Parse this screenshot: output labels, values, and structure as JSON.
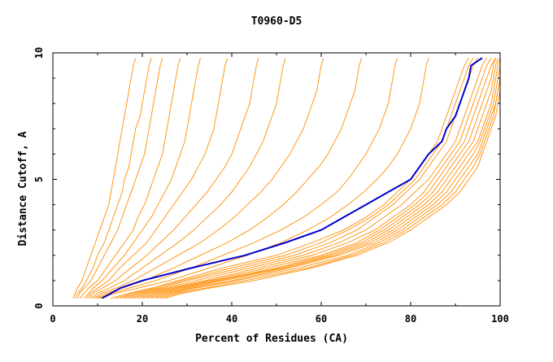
{
  "colors": {
    "background": "#ffffff",
    "axis": "#000000",
    "series_default": "#ff8c00",
    "series_highlight": "#0000cc"
  },
  "chart_data": {
    "type": "line",
    "title": "T0960-D5",
    "xlabel": "Percent of Residues (CA)",
    "ylabel": "Distance Cutoff, A",
    "xlim": [
      0,
      100
    ],
    "ylim": [
      0,
      10
    ],
    "xticks": [
      "0",
      "20",
      "40",
      "60",
      "80",
      "100"
    ],
    "yticks": [
      "0",
      "5",
      "10"
    ],
    "grid": false,
    "legend": "none",
    "y": [
      0.3,
      0.5,
      0.7,
      1.0,
      1.5,
      2.0,
      2.5,
      3.0,
      3.5,
      4.0,
      4.5,
      5.0,
      5.5,
      6.0,
      6.5,
      7.0,
      7.5,
      8.0,
      8.5,
      9.0,
      9.5,
      9.8
    ],
    "highlight_series_index": 0,
    "series": [
      {
        "x": [
          11,
          13,
          15,
          20,
          31,
          43,
          52,
          60,
          65,
          70,
          75,
          80,
          82,
          84,
          87,
          88,
          90,
          91,
          92,
          93,
          93.5,
          96
        ]
      },
      {
        "x": [
          4.5,
          5.0,
          5.5,
          6.5,
          7.5,
          8.5,
          9.5,
          10.5,
          11.5,
          12.5,
          13.0,
          13.5,
          14.0,
          14.5,
          15.0,
          15.5,
          16.0,
          16.5,
          17.0,
          17.5,
          18.0,
          18.5
        ]
      },
      {
        "x": [
          5.0,
          5.5,
          6.5,
          7.5,
          9.0,
          10.0,
          11.5,
          12.5,
          13.5,
          14.5,
          15.5,
          16.0,
          17.0,
          17.5,
          18.0,
          18.5,
          19.5,
          20.0,
          20.5,
          21.0,
          21.5,
          22.0
        ]
      },
      {
        "x": [
          5.5,
          6.0,
          7.0,
          8.5,
          10.0,
          11.5,
          13.0,
          14.5,
          15.5,
          16.5,
          17.5,
          18.5,
          19.5,
          20.5,
          21.0,
          21.5,
          22.0,
          22.5,
          23.0,
          23.5,
          24.0,
          24.5
        ]
      },
      {
        "x": [
          6.0,
          7.0,
          8.0,
          10.0,
          12.0,
          14.0,
          16.0,
          18.0,
          19.0,
          20.5,
          21.5,
          22.5,
          23.5,
          24.5,
          25.0,
          25.5,
          26.0,
          26.5,
          27.0,
          27.5,
          28.0,
          28.5
        ]
      },
      {
        "x": [
          7.0,
          8.0,
          9.0,
          11.0,
          13.5,
          16.0,
          18.0,
          20.0,
          22.0,
          23.5,
          25.0,
          26.5,
          27.5,
          28.5,
          29.5,
          30.0,
          30.5,
          31.0,
          31.5,
          32.0,
          32.5,
          33.0
        ]
      },
      {
        "x": [
          7.5,
          8.5,
          10.0,
          12.5,
          15.0,
          18.0,
          21.0,
          23.0,
          25.0,
          27.0,
          29.0,
          31.0,
          32.5,
          34.0,
          35.0,
          36.0,
          36.5,
          37.0,
          37.5,
          38.0,
          38.5,
          39.0
        ]
      },
      {
        "x": [
          8.0,
          9.0,
          11.0,
          14.0,
          17.5,
          21.0,
          24.0,
          27.0,
          29.5,
          32.0,
          34.5,
          36.5,
          38.5,
          40.0,
          41.0,
          42.0,
          43.0,
          44.0,
          44.5,
          45.0,
          45.5,
          46.0
        ]
      },
      {
        "x": [
          8.5,
          10.0,
          12.5,
          16.0,
          20.0,
          24.0,
          28.0,
          31.5,
          34.5,
          37.5,
          40.0,
          42.0,
          44.0,
          45.5,
          47.0,
          48.0,
          49.0,
          50.0,
          50.5,
          51.0,
          51.5,
          52.0
        ]
      },
      {
        "x": [
          9.0,
          11.0,
          14.0,
          18.0,
          23.0,
          28.0,
          33.0,
          37.0,
          40.5,
          43.5,
          46.5,
          49.0,
          51.0,
          53.0,
          54.5,
          56.0,
          57.0,
          58.0,
          59.0,
          59.5,
          60.0,
          60.5
        ]
      },
      {
        "x": [
          9.5,
          12.0,
          15.5,
          20.5,
          27.0,
          33.0,
          39.0,
          44.0,
          48.0,
          51.5,
          54.5,
          57.0,
          59.5,
          61.5,
          63.0,
          64.5,
          65.5,
          66.5,
          67.5,
          68.0,
          68.5,
          69.0
        ]
      },
      {
        "x": [
          10.0,
          13.0,
          17.0,
          23.0,
          31.0,
          38.0,
          45.0,
          51.0,
          56.0,
          60.0,
          63.5,
          66.0,
          68.0,
          70.0,
          71.5,
          73.0,
          74.0,
          75.0,
          75.5,
          76.0,
          76.5,
          77.0
        ]
      },
      {
        "x": [
          10.5,
          14.0,
          19.0,
          26.0,
          35.0,
          43.5,
          51.0,
          57.0,
          62.0,
          66.0,
          69.5,
          72.5,
          75.0,
          77.0,
          78.5,
          80.0,
          81.0,
          82.0,
          82.5,
          83.0,
          83.5,
          84.0
        ]
      },
      {
        "x": [
          15,
          19,
          24,
          30,
          42,
          54,
          62,
          68,
          72,
          76,
          79,
          82,
          84,
          86,
          88,
          89,
          90,
          91,
          92,
          93,
          94,
          95
        ]
      },
      {
        "x": [
          16,
          20,
          25,
          32,
          44,
          56,
          64,
          70,
          74,
          78,
          81,
          84,
          86,
          88,
          90,
          91,
          92,
          93,
          94,
          95,
          96,
          97
        ]
      },
      {
        "x": [
          17,
          21,
          26,
          34,
          46,
          58,
          66,
          72,
          76,
          80,
          83,
          85,
          87,
          89,
          91,
          92,
          93,
          94,
          95,
          96,
          97,
          98
        ]
      },
      {
        "x": [
          18,
          22,
          27,
          35,
          48,
          60,
          68,
          73,
          77,
          81,
          84,
          86,
          88,
          90,
          92,
          93,
          94,
          95,
          96,
          97,
          98,
          99
        ]
      },
      {
        "x": [
          19,
          23,
          28,
          36,
          50,
          61,
          69,
          74,
          78,
          82,
          85,
          87,
          89,
          91,
          93,
          94,
          95,
          96,
          97,
          98,
          98.5,
          99
        ]
      },
      {
        "x": [
          20,
          24,
          29,
          37,
          51,
          62,
          70,
          75,
          79,
          83,
          86,
          88,
          90,
          92,
          94,
          95,
          96,
          97,
          98,
          98.5,
          99,
          99.5
        ]
      },
      {
        "x": [
          21,
          25,
          30,
          38,
          52,
          63,
          71,
          76,
          80,
          84,
          87,
          89,
          91,
          93,
          95,
          96,
          97,
          98,
          98.5,
          99,
          99.5,
          100
        ]
      },
      {
        "x": [
          22,
          26,
          31,
          40,
          53,
          64,
          72,
          77,
          81,
          85,
          88,
          90,
          92,
          94,
          95.5,
          96.5,
          97.5,
          98.5,
          99,
          99.5,
          100,
          100
        ]
      },
      {
        "x": [
          23,
          27,
          32,
          41,
          55,
          66,
          73,
          78,
          82,
          86,
          89,
          91,
          93,
          95,
          96,
          97,
          98,
          99,
          99.5,
          100,
          100,
          100
        ]
      },
      {
        "x": [
          24,
          28,
          34,
          43,
          57,
          67,
          74,
          79,
          83,
          87,
          90,
          92,
          94,
          95.5,
          96.5,
          97.5,
          98.5,
          99,
          99.5,
          100,
          100,
          100
        ]
      },
      {
        "x": [
          25,
          29,
          35,
          45,
          58,
          68,
          75,
          80,
          84,
          88,
          91,
          93,
          95,
          96,
          97,
          98,
          99,
          99.5,
          100,
          100,
          100,
          100
        ]
      },
      {
        "x": [
          14,
          18,
          23,
          29,
          40,
          52,
          60,
          66,
          71,
          75,
          78,
          81,
          83,
          85,
          87,
          88,
          89,
          90,
          91,
          92,
          93,
          94
        ]
      },
      {
        "x": [
          13,
          17,
          22,
          28,
          38,
          50,
          58,
          65,
          70,
          74,
          77,
          80,
          82,
          84,
          86,
          87,
          88,
          89,
          90,
          91,
          92,
          93
        ]
      }
    ]
  }
}
